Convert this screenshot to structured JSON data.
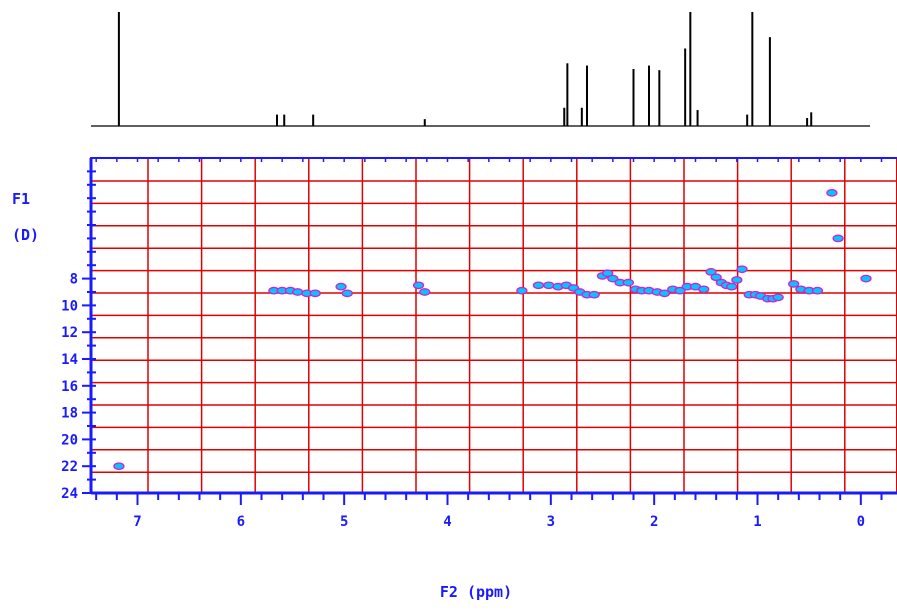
{
  "chart_data": {
    "type": "scatter",
    "title": "",
    "xlabel": "F2 (ppm)",
    "ylabel_line1": "F1",
    "ylabel_line2": "(D)",
    "xlim": [
      7.45,
      -0.35
    ],
    "ylim": [
      -1,
      24
    ],
    "x_ticks": [
      "7",
      "6",
      "5",
      "4",
      "3",
      "2",
      "1",
      "0"
    ],
    "x_tick_values": [
      7,
      6,
      5,
      4,
      3,
      2,
      1,
      0
    ],
    "y_ticks": [
      "8",
      "10",
      "12",
      "14",
      "16",
      "18",
      "20",
      "22",
      "24"
    ],
    "y_tick_values": [
      8,
      10,
      12,
      14,
      16,
      18,
      20,
      22,
      24
    ],
    "grid": true,
    "colors": {
      "axis": "#1a1aff",
      "grid": "#e00000",
      "peak_fill": "#00c8ff",
      "peak_edge": "#d020d0",
      "spectrum": "#000000"
    },
    "projection_1d": {
      "x": [
        7.18,
        5.65,
        5.58,
        5.3,
        4.22,
        2.87,
        2.84,
        2.7,
        2.65,
        2.2,
        2.05,
        1.95,
        1.7,
        1.65,
        1.58,
        1.1,
        1.05,
        0.88,
        0.52,
        0.48
      ],
      "intensity": [
        1.0,
        0.1,
        0.1,
        0.1,
        0.06,
        0.16,
        0.55,
        0.16,
        0.53,
        0.5,
        0.53,
        0.49,
        0.68,
        1.0,
        0.14,
        0.1,
        1.0,
        0.78,
        0.07,
        0.12
      ]
    },
    "series": [
      {
        "x": [
          7.18,
          5.68,
          5.6,
          5.52,
          5.45,
          5.36,
          5.28,
          5.03,
          4.97,
          4.28,
          4.22,
          3.28,
          3.12,
          3.02,
          2.93,
          2.85,
          2.78,
          2.72,
          2.65,
          2.58,
          2.5,
          2.45,
          2.4,
          2.33,
          2.25,
          2.18,
          2.12,
          2.05,
          1.97,
          1.9,
          1.82,
          1.75,
          1.68,
          1.6,
          1.52,
          1.45,
          1.4,
          1.35,
          1.3,
          1.25,
          1.2,
          1.15,
          1.08,
          1.02,
          0.97,
          0.9,
          0.85,
          0.8,
          0.65,
          0.58,
          0.5,
          0.42,
          0.28,
          0.22,
          -0.05
        ],
        "y": [
          22,
          8.9,
          8.9,
          8.9,
          9.0,
          9.1,
          9.1,
          8.6,
          9.1,
          8.5,
          9.0,
          8.9,
          8.5,
          8.5,
          8.6,
          8.5,
          8.7,
          9.0,
          9.2,
          9.2,
          7.8,
          7.6,
          8.0,
          8.3,
          8.3,
          8.8,
          8.9,
          8.9,
          9.0,
          9.1,
          8.8,
          8.9,
          8.6,
          8.6,
          8.8,
          7.5,
          7.9,
          8.3,
          8.5,
          8.6,
          8.1,
          7.3,
          9.2,
          9.2,
          9.3,
          9.5,
          9.5,
          9.4,
          8.4,
          8.8,
          8.9,
          8.9,
          1.6,
          5.0,
          8.0
        ]
      }
    ]
  }
}
